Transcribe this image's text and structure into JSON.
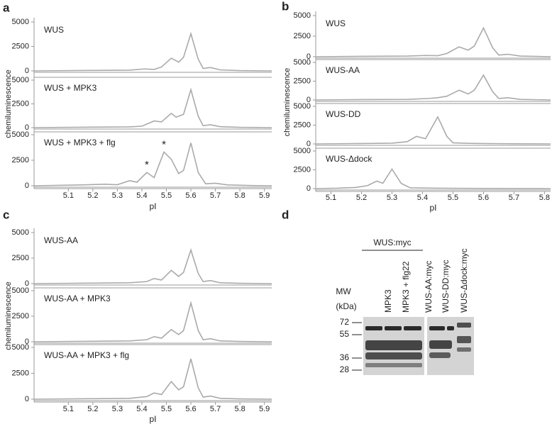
{
  "chart_data": [
    {
      "type": "line",
      "letter": "a",
      "ylabel": "chemiluminescence",
      "xlabel": "pI",
      "color": "#aaaaaa",
      "xlim": [
        4.96,
        5.93
      ],
      "xticks": [
        5.1,
        5.2,
        5.3,
        5.4,
        5.5,
        5.6,
        5.7,
        5.8,
        5.9
      ],
      "ylim": [
        0,
        5000
      ],
      "yticks": [
        0,
        2500,
        5000
      ],
      "subplots": [
        {
          "label": "WUS",
          "x": [
            4.96,
            5.2,
            5.35,
            5.41,
            5.45,
            5.48,
            5.52,
            5.55,
            5.57,
            5.6,
            5.63,
            5.65,
            5.68,
            5.72,
            5.8,
            5.93
          ],
          "values": [
            0,
            50,
            80,
            200,
            150,
            400,
            1300,
            900,
            1400,
            3800,
            1200,
            250,
            350,
            100,
            30,
            0
          ]
        },
        {
          "label": "WUS + MPK3",
          "x": [
            4.96,
            5.2,
            5.35,
            5.4,
            5.45,
            5.48,
            5.52,
            5.54,
            5.57,
            5.6,
            5.63,
            5.65,
            5.68,
            5.72,
            5.8,
            5.93
          ],
          "values": [
            0,
            50,
            80,
            150,
            700,
            600,
            1500,
            1100,
            1400,
            4000,
            1200,
            200,
            300,
            100,
            30,
            0
          ]
        },
        {
          "label": "WUS + MPK3 + flg",
          "x": [
            4.96,
            5.15,
            5.25,
            5.3,
            5.35,
            5.38,
            5.42,
            5.45,
            5.49,
            5.52,
            5.55,
            5.57,
            5.6,
            5.63,
            5.66,
            5.7,
            5.75,
            5.85,
            5.93
          ],
          "values": [
            0,
            80,
            150,
            100,
            500,
            350,
            1300,
            800,
            3300,
            2600,
            1200,
            1500,
            4200,
            1300,
            200,
            250,
            80,
            20,
            0
          ],
          "annotations": [
            {
              "text": "*",
              "x": 5.42
            },
            {
              "text": "*",
              "x": 5.49
            }
          ]
        }
      ]
    },
    {
      "type": "line",
      "letter": "b",
      "ylabel": "chemiluminescence",
      "xlabel": "pI",
      "color": "#aaaaaa",
      "xlim": [
        5.05,
        5.82
      ],
      "xticks": [
        5.1,
        5.2,
        5.3,
        5.4,
        5.5,
        5.6,
        5.7,
        5.8
      ],
      "ylim": [
        0,
        5000
      ],
      "yticks": [
        0,
        2500,
        5000
      ],
      "subplots": [
        {
          "label": "WUS",
          "x": [
            5.05,
            5.2,
            5.35,
            5.41,
            5.45,
            5.48,
            5.52,
            5.55,
            5.57,
            5.6,
            5.63,
            5.65,
            5.68,
            5.72,
            5.82
          ],
          "values": [
            0,
            50,
            80,
            150,
            120,
            400,
            1200,
            800,
            1300,
            3500,
            1100,
            200,
            300,
            80,
            0
          ]
        },
        {
          "label": "WUS-AA",
          "x": [
            5.05,
            5.2,
            5.35,
            5.42,
            5.45,
            5.48,
            5.52,
            5.55,
            5.57,
            5.6,
            5.63,
            5.65,
            5.68,
            5.72,
            5.82
          ],
          "values": [
            0,
            50,
            80,
            200,
            300,
            500,
            1300,
            800,
            1300,
            3300,
            1100,
            200,
            300,
            80,
            0
          ]
        },
        {
          "label": "WUS-DD",
          "x": [
            5.05,
            5.2,
            5.3,
            5.35,
            5.38,
            5.41,
            5.45,
            5.48,
            5.5,
            5.55,
            5.6,
            5.7,
            5.82
          ],
          "values": [
            0,
            50,
            100,
            300,
            1000,
            700,
            3600,
            1000,
            150,
            80,
            50,
            20,
            0
          ]
        },
        {
          "label": "WUS-Δdock",
          "x": [
            5.05,
            5.12,
            5.18,
            5.22,
            5.25,
            5.27,
            5.3,
            5.33,
            5.36,
            5.45,
            5.6,
            5.82
          ],
          "values": [
            0,
            50,
            150,
            400,
            1000,
            700,
            2600,
            700,
            100,
            50,
            20,
            0
          ]
        }
      ]
    },
    {
      "type": "line",
      "letter": "c",
      "ylabel": "chemiluminescence",
      "xlabel": "pI",
      "color": "#aaaaaa",
      "xlim": [
        4.96,
        5.93
      ],
      "xticks": [
        5.1,
        5.2,
        5.3,
        5.4,
        5.5,
        5.6,
        5.7,
        5.8,
        5.9
      ],
      "ylim": [
        0,
        5000
      ],
      "yticks": [
        0,
        2500,
        5000
      ],
      "subplots": [
        {
          "label": "WUS-AA",
          "x": [
            4.96,
            5.2,
            5.35,
            5.42,
            5.45,
            5.48,
            5.52,
            5.55,
            5.57,
            5.6,
            5.63,
            5.65,
            5.68,
            5.72,
            5.8,
            5.93
          ],
          "values": [
            0,
            50,
            80,
            200,
            500,
            350,
            1300,
            700,
            1100,
            3300,
            1000,
            200,
            300,
            80,
            30,
            0
          ]
        },
        {
          "label": "WUS-AA + MPK3",
          "x": [
            4.96,
            5.2,
            5.35,
            5.42,
            5.45,
            5.48,
            5.52,
            5.55,
            5.57,
            5.6,
            5.63,
            5.65,
            5.68,
            5.72,
            5.8,
            5.93
          ],
          "values": [
            0,
            50,
            80,
            200,
            500,
            350,
            1200,
            700,
            1100,
            3800,
            1100,
            200,
            300,
            80,
            30,
            0
          ]
        },
        {
          "label": "WUS-AA + MPK3 + flg",
          "x": [
            4.96,
            5.2,
            5.35,
            5.42,
            5.45,
            5.48,
            5.52,
            5.55,
            5.57,
            5.6,
            5.63,
            5.65,
            5.68,
            5.72,
            5.8,
            5.93
          ],
          "values": [
            0,
            50,
            80,
            250,
            600,
            450,
            1700,
            900,
            1200,
            3900,
            1100,
            200,
            300,
            80,
            30,
            0
          ]
        }
      ]
    }
  ],
  "blot": {
    "letter": "d",
    "group": "WUS:myc",
    "mw_label": "MW",
    "mw_unit": "(kDa)",
    "lanes": [
      "MPK3",
      "MPK3 + flg22",
      "WUS-AA:myc",
      "WUS-DD:myc",
      "WUS-Δdock:myc"
    ],
    "markers": [
      72,
      55,
      36,
      28
    ]
  }
}
